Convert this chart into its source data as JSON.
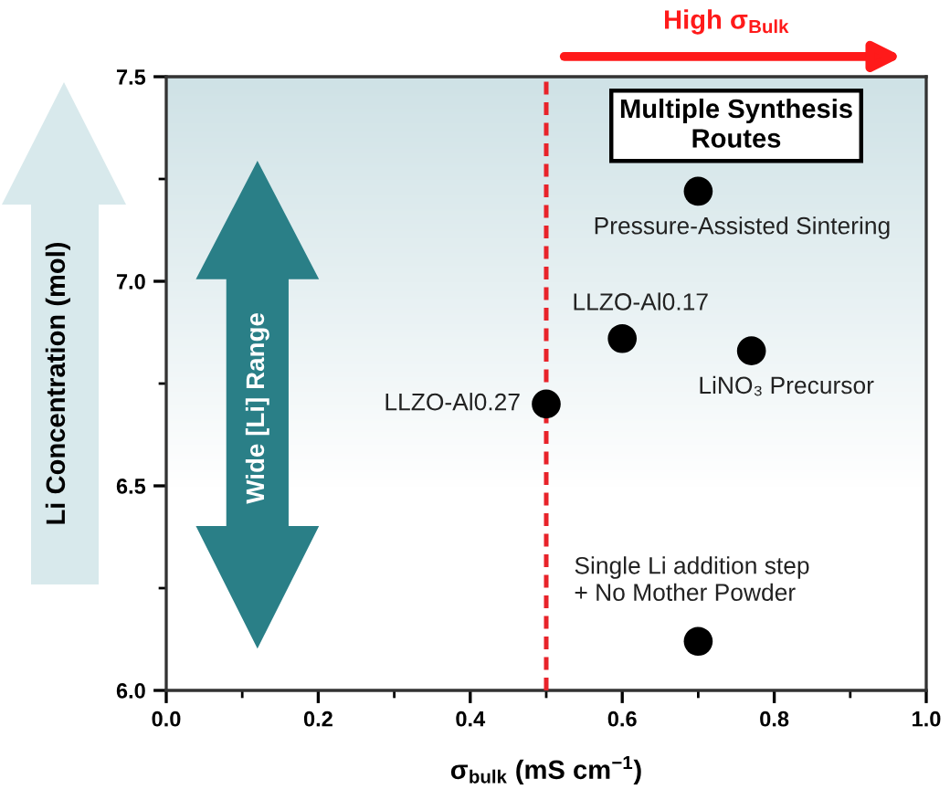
{
  "chart_data": {
    "type": "scatter",
    "xlabel": "σ$_{bulk}$ (mS cm$^{−1}$)",
    "ylabel": "Li Concentration (mol)",
    "x": [
      0.7,
      0.6,
      0.77,
      0.5,
      0.7
    ],
    "series": [
      {
        "color": "#000000",
        "values": [
          7.22,
          6.86,
          6.83,
          6.7,
          6.12
        ]
      }
    ],
    "marker": "circle",
    "xlim": [
      0,
      1
    ],
    "ylim": [
      6,
      7.5
    ],
    "xticks": [
      {
        "value": 0,
        "label": "0.0"
      },
      {
        "value": 0.1,
        "label": null
      },
      0.2,
      {
        "value": 0.3,
        "label": null
      },
      0.4,
      {
        "value": 0.5,
        "label": null
      },
      0.6,
      {
        "value": 0.7,
        "label": null
      },
      0.8,
      {
        "value": 0.9,
        "label": null
      },
      {
        "value": 1,
        "label": "1.0"
      }
    ],
    "yticks": [
      {
        "value": 6,
        "label": "6.0"
      },
      {
        "value": 6.25,
        "label": null
      },
      6.5,
      {
        "value": 6.75,
        "label": null
      },
      {
        "value": 7,
        "label": "7.0"
      },
      {
        "value": 7.25,
        "label": null
      },
      7.5
    ],
    "ref_lines": [
      {
        "axis": "x",
        "value": 0.5,
        "color": "#e8232a",
        "line_style": "dashed"
      }
    ],
    "annotations": [
      "High σ$_{Bulk}$",
      "Multiple Synthesis\nRoutes",
      "Wide [Li] Range",
      {
        "text": "Pressure-Assisted Sintering",
        "x": 0.7,
        "y": 7.22
      },
      {
        "text": "LLZO-Al0.17",
        "x": 0.6,
        "y": 6.86
      },
      {
        "text": "LiNO₃ Precursor",
        "x": 0.77,
        "y": 6.83
      },
      {
        "text": "LLZO-Al0.27",
        "x": 0.5,
        "y": 6.7
      },
      {
        "text": "Single Li addition step\n+ No Mother Powder",
        "x": 0.7,
        "y": 6.12
      }
    ]
  }
}
